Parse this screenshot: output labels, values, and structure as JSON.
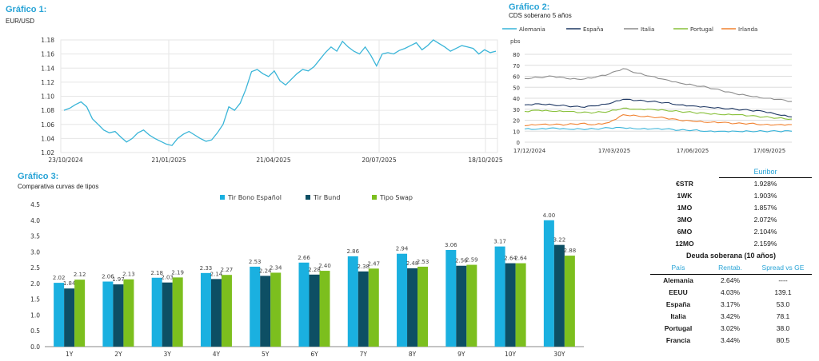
{
  "colors": {
    "accent": "#27a3d6",
    "bono": "#1ab0e0",
    "bund": "#0d4f64",
    "swap": "#7cbf1e",
    "fx": "#3ab5d8",
    "alemania": "#36b3d9",
    "espana": "#1f3864",
    "italia": "#8c8c8c",
    "portugal": "#88c03a",
    "irlanda": "#f08231"
  },
  "chart1": {
    "title": "Gráfico 1:",
    "subtitle": "EUR/USD"
  },
  "chart2": {
    "title": "Gráfico 2:",
    "subtitle": "CDS soberano 5 años",
    "unit": "pbs"
  },
  "chart3": {
    "title": "Gráfico 3:",
    "subtitle": "Comparativa curvas de tipos"
  },
  "chart_data": [
    {
      "type": "line",
      "x_ticks": [
        "23/10/2024",
        "21/01/2025",
        "21/04/2025",
        "20/07/2025",
        "18/10/2025"
      ],
      "ylim": [
        1.02,
        1.18
      ],
      "y_ticks": [
        1.02,
        1.04,
        1.06,
        1.08,
        1.1,
        1.12,
        1.14,
        1.16,
        1.18
      ],
      "grid": true,
      "series": [
        {
          "values": [
            1.08,
            1.083,
            1.088,
            1.092,
            1.085,
            1.068,
            1.06,
            1.052,
            1.048,
            1.05,
            1.042,
            1.035,
            1.04,
            1.048,
            1.052,
            1.045,
            1.04,
            1.036,
            1.032,
            1.03,
            1.04,
            1.046,
            1.05,
            1.045,
            1.04,
            1.036,
            1.038,
            1.048,
            1.06,
            1.085,
            1.08,
            1.09,
            1.11,
            1.135,
            1.138,
            1.132,
            1.128,
            1.136,
            1.122,
            1.116,
            1.124,
            1.132,
            1.138,
            1.136,
            1.142,
            1.152,
            1.162,
            1.17,
            1.164,
            1.178,
            1.17,
            1.164,
            1.16,
            1.17,
            1.158,
            1.143,
            1.16,
            1.162,
            1.16,
            1.165,
            1.168,
            1.172,
            1.176,
            1.166,
            1.172,
            1.18,
            1.175,
            1.17,
            1.164,
            1.168,
            1.172,
            1.17,
            1.168,
            1.16,
            1.166,
            1.162,
            1.164
          ]
        }
      ]
    },
    {
      "type": "line",
      "x_ticks": [
        "17/12/2024",
        "17/03/2025",
        "17/06/2025",
        "17/09/2025"
      ],
      "ylim": [
        0,
        80
      ],
      "y_ticks": [
        0,
        10,
        20,
        30,
        40,
        50,
        60,
        70,
        80
      ],
      "legend_position": "top",
      "grid": true,
      "series": [
        {
          "name": "Alemania",
          "values": [
            12,
            12,
            13,
            12,
            12,
            12,
            13,
            13,
            12,
            12,
            12,
            11,
            11,
            10,
            10,
            10,
            10,
            10,
            10,
            10
          ]
        },
        {
          "name": "España",
          "values": [
            34,
            35,
            34,
            33,
            32,
            33,
            35,
            39,
            38,
            37,
            36,
            34,
            33,
            32,
            31,
            30,
            29,
            28,
            25,
            23
          ]
        },
        {
          "name": "Italia",
          "values": [
            58,
            59,
            60,
            58,
            57,
            59,
            62,
            67,
            63,
            60,
            57,
            54,
            52,
            50,
            47,
            44,
            42,
            40,
            39,
            37
          ]
        },
        {
          "name": "Portugal",
          "values": [
            28,
            29,
            28,
            28,
            27,
            27,
            28,
            31,
            30,
            30,
            29,
            28,
            27,
            26,
            25,
            25,
            24,
            23,
            22,
            21
          ]
        },
        {
          "name": "Irlanda",
          "values": [
            15,
            16,
            16,
            16,
            17,
            16,
            18,
            25,
            24,
            23,
            22,
            20,
            19,
            18,
            18,
            17,
            17,
            16,
            16,
            16
          ]
        }
      ]
    },
    {
      "type": "bar",
      "categories": [
        "1Y",
        "2Y",
        "3Y",
        "4Y",
        "5Y",
        "6Y",
        "7Y",
        "8Y",
        "9Y",
        "10Y",
        "30Y"
      ],
      "ylim": [
        0,
        4.5
      ],
      "y_ticks": [
        "0.0",
        "0.5",
        "1.0",
        "1.5",
        "2.0",
        "2.5",
        "3.0",
        "3.5",
        "4.0",
        "4.5"
      ],
      "legend_position": "top",
      "series": [
        {
          "name": "Tir Bono Español",
          "values": [
            2.02,
            2.06,
            2.18,
            2.33,
            2.53,
            2.66,
            2.86,
            2.94,
            3.06,
            3.17,
            4.0
          ]
        },
        {
          "name": "Tir Bund",
          "values": [
            1.84,
            1.97,
            2.03,
            2.14,
            2.24,
            2.28,
            2.38,
            2.48,
            2.56,
            2.64,
            3.22
          ]
        },
        {
          "name": "Tipo Swap",
          "values": [
            2.12,
            2.13,
            2.19,
            2.27,
            2.34,
            2.4,
            2.47,
            2.53,
            2.59,
            2.64,
            2.88
          ]
        }
      ]
    }
  ],
  "euribor": {
    "header": "Euribor",
    "rows": [
      {
        "label": "€STR",
        "value": "1.928%"
      },
      {
        "label": "1WK",
        "value": "1.903%"
      },
      {
        "label": "1MO",
        "value": "1.857%"
      },
      {
        "label": "3MO",
        "value": "2.072%"
      },
      {
        "label": "6MO",
        "value": "2.104%"
      },
      {
        "label": "12MO",
        "value": "2.159%"
      }
    ]
  },
  "deuda": {
    "header": "Deuda soberana (10 años)",
    "col1": "País",
    "col2": "Rentab.",
    "col3": "Spread vs GE",
    "rows": [
      {
        "pais": "Alemania",
        "rent": "2.64%",
        "spread": "----"
      },
      {
        "pais": "EEUU",
        "rent": "4.03%",
        "spread": "139.1"
      },
      {
        "pais": "España",
        "rent": "3.17%",
        "spread": "53.0"
      },
      {
        "pais": "Italia",
        "rent": "3.42%",
        "spread": "78.1"
      },
      {
        "pais": "Portugal",
        "rent": "3.02%",
        "spread": "38.0"
      },
      {
        "pais": "Francia",
        "rent": "3.44%",
        "spread": "80.5"
      }
    ]
  }
}
